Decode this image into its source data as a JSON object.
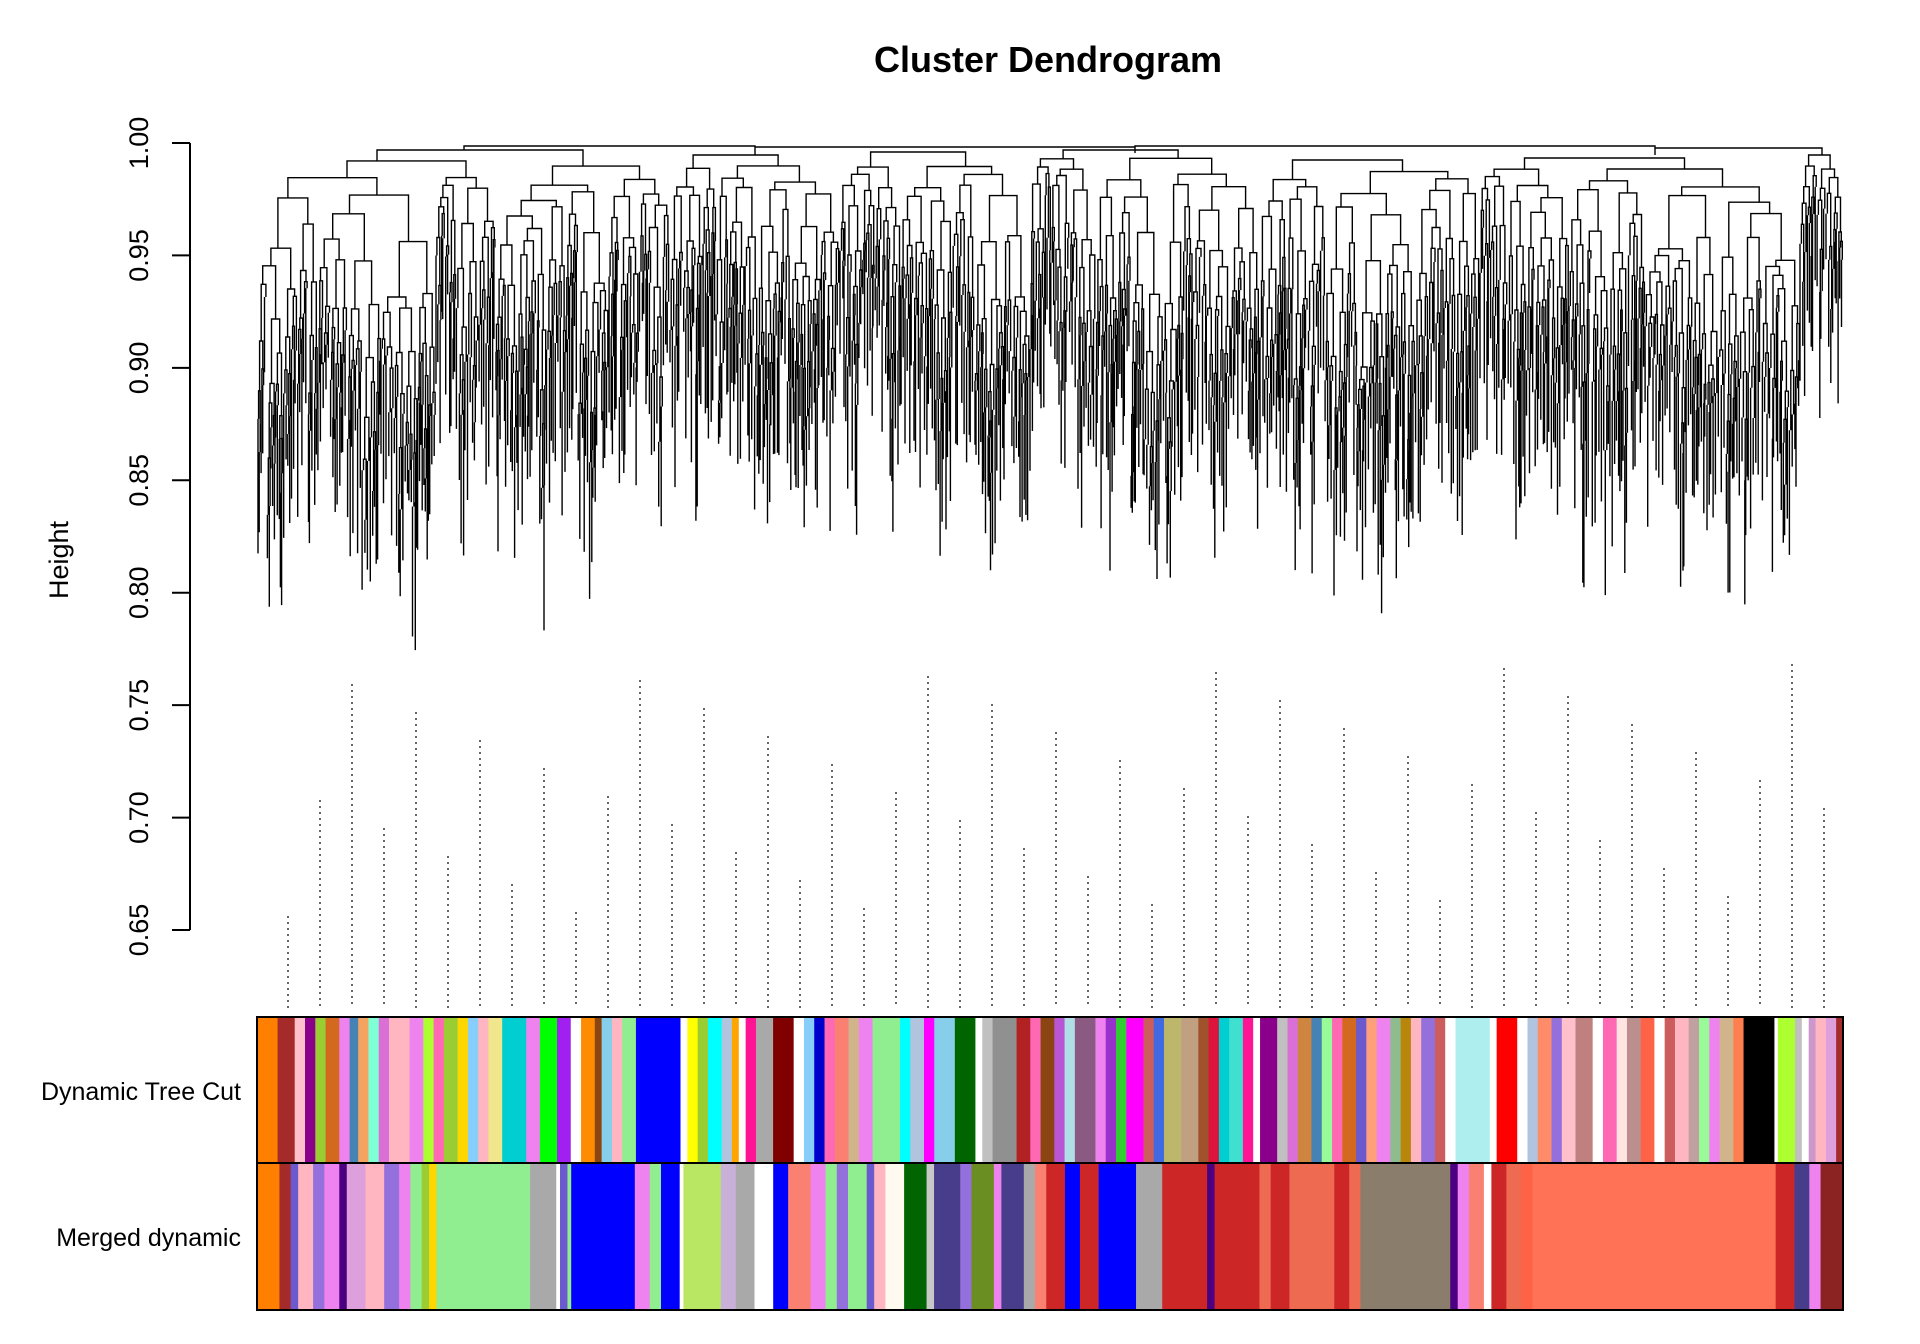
{
  "chart_data": {
    "type": "dendrogram",
    "title": "Cluster Dendrogram",
    "xlabel": "",
    "ylabel": "Height",
    "ylim": [
      0.65,
      1.0
    ],
    "yticks": [
      "0.65",
      "0.70",
      "0.75",
      "0.80",
      "0.85",
      "0.90",
      "0.95",
      "1.00"
    ],
    "ytick_values": [
      0.65,
      0.7,
      0.75,
      0.8,
      0.85,
      0.9,
      0.95,
      1.0
    ],
    "color_bars": [
      {
        "label": "Dynamic Tree Cut",
        "segments": [
          [
            "#ff7f00",
            0.012
          ],
          [
            "#a52a2a",
            0.01
          ],
          [
            "#ffc0cb",
            0.006
          ],
          [
            "#8b008b",
            0.006
          ],
          [
            "#9acd32",
            0.006
          ],
          [
            "#d2691e",
            0.008
          ],
          [
            "#ee82ee",
            0.006
          ],
          [
            "#4682b4",
            0.005
          ],
          [
            "#f4a460",
            0.006
          ],
          [
            "#7fffd4",
            0.006
          ],
          [
            "#da70d6",
            0.006
          ],
          [
            "#ffb6c1",
            0.012
          ],
          [
            "#ee82ee",
            0.008
          ],
          [
            "#adff2f",
            0.006
          ],
          [
            "#ff69b4",
            0.006
          ],
          [
            "#9acd32",
            0.008
          ],
          [
            "#ffd700",
            0.006
          ],
          [
            "#87cefa",
            0.006
          ],
          [
            "#ffb6c1",
            0.006
          ],
          [
            "#f0e68c",
            0.008
          ],
          [
            "#00ced1",
            0.014
          ],
          [
            "#ee82ee",
            0.008
          ],
          [
            "#00ff00",
            0.01
          ],
          [
            "#a020f0",
            0.008
          ],
          [
            "#ffffff",
            0.006
          ],
          [
            "#ff8c00",
            0.008
          ],
          [
            "#8b4513",
            0.004
          ],
          [
            "#87ceeb",
            0.006
          ],
          [
            "#ffb6c1",
            0.006
          ],
          [
            "#90ee90",
            0.008
          ],
          [
            "#0000ff",
            0.026
          ],
          [
            "#ffffff",
            0.004
          ],
          [
            "#ffff00",
            0.006
          ],
          [
            "#9acd32",
            0.006
          ],
          [
            "#00ffff",
            0.008
          ],
          [
            "#b0c4de",
            0.006
          ],
          [
            "#ffa500",
            0.004
          ],
          [
            "#ffffff",
            0.004
          ],
          [
            "#ff1493",
            0.006
          ],
          [
            "#a9a9a9",
            0.01
          ],
          [
            "#800000",
            0.012
          ],
          [
            "#ffffff",
            0.006
          ],
          [
            "#87cefa",
            0.006
          ],
          [
            "#0000cd",
            0.006
          ],
          [
            "#ff69b4",
            0.006
          ],
          [
            "#fa8072",
            0.008
          ],
          [
            "#d2b48c",
            0.006
          ],
          [
            "#ee82ee",
            0.008
          ],
          [
            "#90ee90",
            0.016
          ],
          [
            "#00ffff",
            0.006
          ],
          [
            "#b0c4de",
            0.008
          ],
          [
            "#ff00ff",
            0.006
          ],
          [
            "#87ceeb",
            0.012
          ],
          [
            "#006400",
            0.012
          ],
          [
            "#ffffff",
            0.004
          ],
          [
            "#c0c0c0",
            0.006
          ],
          [
            "#909090",
            0.014
          ],
          [
            "#b22222",
            0.008
          ],
          [
            "#ff69b4",
            0.006
          ],
          [
            "#8b4513",
            0.008
          ],
          [
            "#ba55d3",
            0.006
          ],
          [
            "#b0e0e6",
            0.006
          ],
          [
            "#8b5a83",
            0.012
          ],
          [
            "#ee82ee",
            0.006
          ],
          [
            "#9932cc",
            0.006
          ],
          [
            "#32cd32",
            0.006
          ],
          [
            "#ff00ff",
            0.01
          ],
          [
            "#cd5c5c",
            0.006
          ],
          [
            "#4169e1",
            0.006
          ],
          [
            "#bdb76b",
            0.01
          ],
          [
            "#c0a080",
            0.01
          ],
          [
            "#a0522d",
            0.006
          ],
          [
            "#dc143c",
            0.006
          ],
          [
            "#00ced1",
            0.006
          ],
          [
            "#40e0d0",
            0.008
          ],
          [
            "#ff1493",
            0.006
          ],
          [
            "#ffffff",
            0.004
          ],
          [
            "#8b008b",
            0.01
          ],
          [
            "#c0c0c0",
            0.006
          ],
          [
            "#da70d6",
            0.006
          ],
          [
            "#cd853f",
            0.008
          ],
          [
            "#4682b4",
            0.006
          ],
          [
            "#98fb98",
            0.006
          ],
          [
            "#ff69b4",
            0.006
          ],
          [
            "#d2691e",
            0.008
          ],
          [
            "#6a5acd",
            0.006
          ],
          [
            "#ffa07a",
            0.006
          ],
          [
            "#ee82ee",
            0.008
          ],
          [
            "#8fbc8f",
            0.006
          ],
          [
            "#b8860b",
            0.006
          ],
          [
            "#ffb6c1",
            0.006
          ],
          [
            "#9370db",
            0.008
          ],
          [
            "#cd5c5c",
            0.006
          ],
          [
            "#ffffff",
            0.006
          ],
          [
            "#afeeee",
            0.02
          ],
          [
            "#ffffff",
            0.004
          ],
          [
            "#ff0000",
            0.012
          ],
          [
            "#ffffff",
            0.006
          ],
          [
            "#b0c4de",
            0.006
          ],
          [
            "#ff8c69",
            0.008
          ],
          [
            "#9370db",
            0.006
          ],
          [
            "#ffc0cb",
            0.008
          ],
          [
            "#c08080",
            0.01
          ],
          [
            "#ffffff",
            0.006
          ],
          [
            "#ff69b4",
            0.008
          ],
          [
            "#ffe4e1",
            0.006
          ],
          [
            "#bc8f8f",
            0.008
          ],
          [
            "#ff6347",
            0.008
          ],
          [
            "#ffffff",
            0.006
          ],
          [
            "#cd5c5c",
            0.006
          ],
          [
            "#ffb6c1",
            0.008
          ],
          [
            "#c0a0a0",
            0.006
          ],
          [
            "#98fb98",
            0.006
          ],
          [
            "#ee82ee",
            0.006
          ],
          [
            "#d2b48c",
            0.008
          ],
          [
            "#ff7f50",
            0.006
          ],
          [
            "#000000",
            0.018
          ],
          [
            "#ffffff",
            0.002
          ],
          [
            "#adff2f",
            0.01
          ],
          [
            "#c0c0c0",
            0.004
          ],
          [
            "#ffffff",
            0.004
          ],
          [
            "#cd96cd",
            0.004
          ],
          [
            "#ffb6c1",
            0.006
          ],
          [
            "#dda0dd",
            0.006
          ],
          [
            "#a52a2a",
            0.004
          ]
        ]
      },
      {
        "label": "Merged dynamic",
        "segments": [
          [
            "#ff7f00",
            0.012
          ],
          [
            "#a52a2a",
            0.006
          ],
          [
            "#6a5acd",
            0.004
          ],
          [
            "#ffb6c1",
            0.008
          ],
          [
            "#9370db",
            0.006
          ],
          [
            "#ee82ee",
            0.008
          ],
          [
            "#4b0082",
            0.004
          ],
          [
            "#dda0dd",
            0.01
          ],
          [
            "#ffb6c1",
            0.01
          ],
          [
            "#9370db",
            0.008
          ],
          [
            "#ee82ee",
            0.006
          ],
          [
            "#90ee90",
            0.006
          ],
          [
            "#9acd32",
            0.004
          ],
          [
            "#ffd700",
            0.004
          ],
          [
            "#90ee90",
            0.05
          ],
          [
            "#a9a9a9",
            0.014
          ],
          [
            "#ffffff",
            0.002
          ],
          [
            "#6a5acd",
            0.004
          ],
          [
            "#90ee90",
            0.002
          ],
          [
            "#0000ff",
            0.034
          ],
          [
            "#ee82ee",
            0.008
          ],
          [
            "#90ee90",
            0.006
          ],
          [
            "#0000ff",
            0.01
          ],
          [
            "#ffffff",
            0.002
          ],
          [
            "#b9e663",
            0.02
          ],
          [
            "#c9b0d9",
            0.008
          ],
          [
            "#a9a9a9",
            0.01
          ],
          [
            "#ffffff",
            0.01
          ],
          [
            "#0000ff",
            0.008
          ],
          [
            "#fa8072",
            0.012
          ],
          [
            "#ee82ee",
            0.008
          ],
          [
            "#90ee90",
            0.006
          ],
          [
            "#9370db",
            0.006
          ],
          [
            "#90ee90",
            0.01
          ],
          [
            "#6a5acd",
            0.004
          ],
          [
            "#ffb6c1",
            0.006
          ],
          [
            "#fffaf0",
            0.01
          ],
          [
            "#006400",
            0.012
          ],
          [
            "#c8c8c8",
            0.004
          ],
          [
            "#483d8b",
            0.014
          ],
          [
            "#9370db",
            0.006
          ],
          [
            "#6b8e23",
            0.012
          ],
          [
            "#ee82ee",
            0.004
          ],
          [
            "#483d8b",
            0.012
          ],
          [
            "#a9a9a9",
            0.006
          ],
          [
            "#fa8072",
            0.006
          ],
          [
            "#cd2626",
            0.01
          ],
          [
            "#0000ff",
            0.008
          ],
          [
            "#cd2626",
            0.01
          ],
          [
            "#0000ff",
            0.02
          ],
          [
            "#a9a9a9",
            0.014
          ],
          [
            "#cd2626",
            0.024
          ],
          [
            "#4b0082",
            0.004
          ],
          [
            "#cd2626",
            0.024
          ],
          [
            "#ee6a50",
            0.006
          ],
          [
            "#cd2626",
            0.01
          ],
          [
            "#ee6a50",
            0.024
          ],
          [
            "#cd2626",
            0.008
          ],
          [
            "#ee6a50",
            0.006
          ],
          [
            "#8b7d6b",
            0.048
          ],
          [
            "#4b0082",
            0.004
          ],
          [
            "#ee82ee",
            0.006
          ],
          [
            "#fa8072",
            0.008
          ],
          [
            "#ffffff",
            0.004
          ],
          [
            "#cd2626",
            0.008
          ],
          [
            "#ee6a50",
            0.008
          ],
          [
            "#ff6347",
            0.006
          ],
          [
            "#ff7256",
            0.13
          ],
          [
            "#cd2626",
            0.01
          ],
          [
            "#483d8b",
            0.008
          ],
          [
            "#ee82ee",
            0.006
          ],
          [
            "#8b2323",
            0.012
          ]
        ]
      }
    ]
  }
}
